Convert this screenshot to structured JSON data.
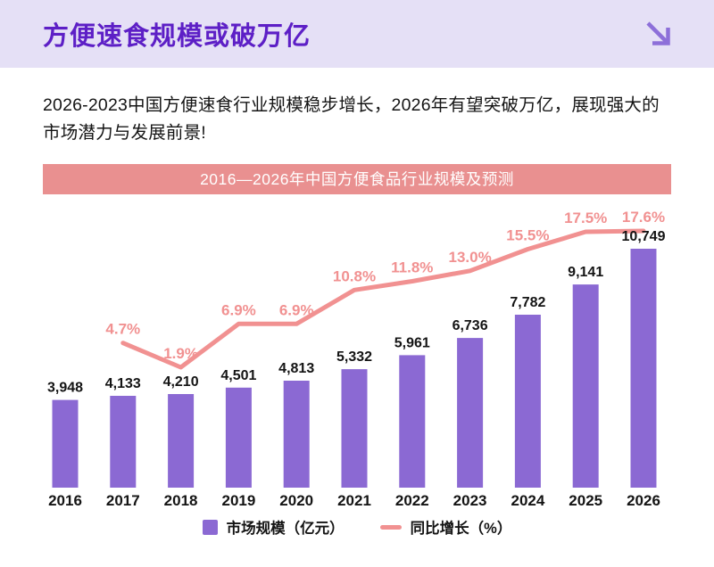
{
  "theme": {
    "header_bg": "#e5e0f6",
    "title_color": "#5d1fc6",
    "arrow_color": "#8d6fd9",
    "text_color": "#141414",
    "banner_bg": "#e99090",
    "banner_text": "#ffffff",
    "bar_color": "#8b69d3",
    "line_color": "#f19191"
  },
  "header": {
    "title": "方便速食规模或破万亿",
    "corner_icon": "arrow-down-right-icon"
  },
  "intro": {
    "text": "2026-2023中国方便速食行业规模稳步增长，2026年有望突破万亿，展现强大的市场潜力与发展前景!"
  },
  "chart": {
    "banner_title": "2016—2026年中国方便食品行业规模及预测",
    "legend": [
      {
        "label": "市场规模（亿元）",
        "swatch": "bar"
      },
      {
        "label": "同比增长（%）",
        "swatch": "line"
      }
    ]
  },
  "chart_data": {
    "type": "bar",
    "title": "2016—2026年中国方便食品行业规模及预测",
    "categories": [
      "2016",
      "2017",
      "2018",
      "2019",
      "2020",
      "2021",
      "2022",
      "2023",
      "2024",
      "2025",
      "2026"
    ],
    "series": [
      {
        "name": "市场规模（亿元）",
        "type": "bar",
        "color": "#8b69d3",
        "values": [
          3948,
          4133,
          4210,
          4501,
          4813,
          5332,
          5961,
          6736,
          7782,
          9141,
          10749
        ],
        "labels": [
          "3,948",
          "4,133",
          "4,210",
          "4,501",
          "4,813",
          "5,332",
          "5,961",
          "6,736",
          "7,782",
          "9,141",
          "10,749"
        ]
      },
      {
        "name": "同比增长（%）",
        "type": "line",
        "color": "#f19191",
        "values": [
          null,
          4.7,
          1.9,
          6.9,
          6.9,
          10.8,
          11.8,
          13.0,
          15.5,
          17.5,
          17.6
        ],
        "labels": [
          null,
          "4.7%",
          "1.9%",
          "6.9%",
          "6.9%",
          "10.8%",
          "11.8%",
          "13.0%",
          "15.5%",
          "17.5%",
          "17.6%"
        ]
      }
    ],
    "xlabel": "",
    "ylabel": "",
    "grid": false,
    "legend_position": "bottom",
    "bar_axis": [
      0,
      11000
    ],
    "line_axis_visible_range": [
      1.9,
      17.6
    ],
    "data_labels": true
  }
}
